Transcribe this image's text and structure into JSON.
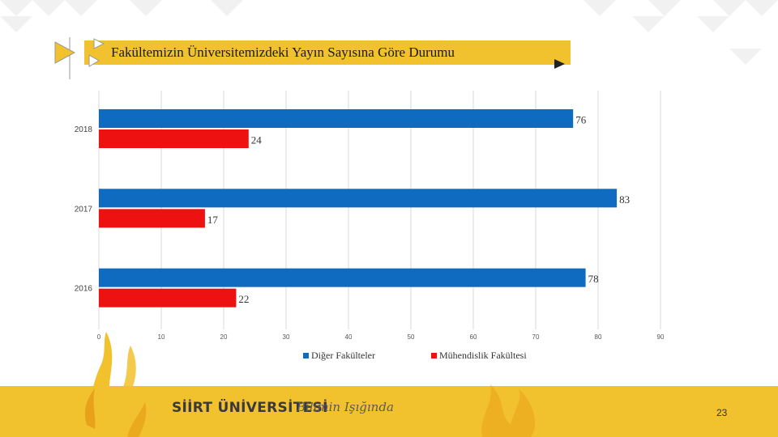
{
  "title": "Fakültemizin Üniversitemizdeki Yayın Sayısına Göre Durumu",
  "chart_data": {
    "type": "bar",
    "orientation": "horizontal",
    "categories": [
      "2018",
      "2017",
      "2016"
    ],
    "series": [
      {
        "name": "Diğer Fakülteler",
        "color": "#0e6bbf",
        "values": [
          76,
          83,
          78
        ]
      },
      {
        "name": "Mühendislik Fakültesi",
        "color": "#ee1111",
        "values": [
          24,
          17,
          22
        ]
      }
    ],
    "xlim": [
      0,
      90
    ],
    "xticks": [
      0,
      10,
      20,
      30,
      40,
      50,
      60,
      70,
      80,
      90
    ],
    "grid": true,
    "legend_position": "bottom"
  },
  "footer": {
    "brand": "SİİRT ÜNİVERSİTESİ",
    "slogan": "Bilimin Işığında",
    "page_number": "23"
  }
}
